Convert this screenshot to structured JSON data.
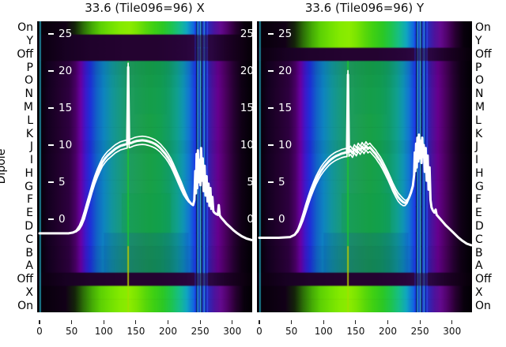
{
  "figure": {
    "background": "#ffffff",
    "text_color": "#000000"
  },
  "chart_data": {
    "type": "heatmap",
    "description": "Two spectral waterfall panels (per-dipole test states) with overlaid white power traces",
    "ylabel": "Dipole",
    "x_ticks": [
      0,
      50,
      100,
      150,
      200,
      250,
      300
    ],
    "x_range": [
      0,
      330
    ],
    "inner_db_ticks": [
      "25",
      "20",
      "15",
      "10",
      "5",
      "0"
    ],
    "db_tick_values": [
      25,
      20,
      15,
      10,
      5,
      0
    ],
    "row_labels": [
      "On",
      "Y",
      "Off",
      "P",
      "O",
      "N",
      "M",
      "L",
      "K",
      "J",
      "I",
      "H",
      "G",
      "F",
      "E",
      "D",
      "C",
      "B",
      "A",
      "Off",
      "X",
      "On"
    ],
    "row_shade": [
      0,
      0,
      0,
      0.05,
      0.02,
      0,
      0,
      0,
      0,
      0.03,
      0,
      0,
      0,
      0,
      0,
      0,
      0,
      0.04,
      0.06,
      0,
      0,
      0
    ],
    "braid_offsets": [
      0,
      0.55,
      -0.55
    ],
    "panels": [
      {
        "title": "33.6 (Tile096=96) X",
        "pol": "X",
        "row_styles": [
          "bright",
          "off",
          "off",
          "main",
          "main",
          "main",
          "main",
          "main",
          "main",
          "main",
          "main",
          "main",
          "main",
          "main",
          "main",
          "main",
          "main",
          "main",
          "main",
          "off",
          "bright",
          "bright"
        ],
        "trace": [
          [
            0,
            -1.9
          ],
          [
            25,
            -1.9
          ],
          [
            45,
            -1.9
          ],
          [
            52,
            -1.8
          ],
          [
            57,
            -1.6
          ],
          [
            62,
            -1.1
          ],
          [
            66,
            -0.4
          ],
          [
            70,
            0.6
          ],
          [
            74,
            1.8
          ],
          [
            78,
            3.0
          ],
          [
            82,
            4.2
          ],
          [
            86,
            5.3
          ],
          [
            90,
            6.2
          ],
          [
            94,
            7.0
          ],
          [
            98,
            7.7
          ],
          [
            102,
            8.2
          ],
          [
            106,
            8.6
          ],
          [
            110,
            8.9
          ],
          [
            114,
            9.2
          ],
          [
            118,
            9.5
          ],
          [
            122,
            9.7
          ],
          [
            126,
            9.9
          ],
          [
            130,
            10.0
          ],
          [
            134,
            10.1
          ],
          [
            136.5,
            10.15
          ],
          [
            138,
            20.5
          ],
          [
            139.5,
            10.2
          ],
          [
            143,
            10.3
          ],
          [
            147,
            10.45
          ],
          [
            151,
            10.55
          ],
          [
            155,
            10.6
          ],
          [
            160,
            10.65
          ],
          [
            165,
            10.6
          ],
          [
            170,
            10.5
          ],
          [
            175,
            10.35
          ],
          [
            180,
            10.15
          ],
          [
            184,
            9.9
          ],
          [
            188,
            9.6
          ],
          [
            192,
            9.2
          ],
          [
            196,
            8.8
          ],
          [
            200,
            8.3
          ],
          [
            204,
            7.7
          ],
          [
            208,
            7.0
          ],
          [
            212,
            6.2
          ],
          [
            216,
            5.4
          ],
          [
            220,
            4.6
          ],
          [
            224,
            3.8
          ],
          [
            228,
            3.1
          ],
          [
            232,
            2.5
          ],
          [
            236,
            2.1
          ],
          [
            239,
            1.9
          ],
          [
            241,
            2.6
          ],
          [
            242.5,
            6.5
          ],
          [
            243.5,
            3.5
          ],
          [
            244.5,
            8.8
          ],
          [
            245.5,
            4.2
          ],
          [
            246.5,
            9.3
          ],
          [
            248,
            5.0
          ],
          [
            249,
            8.0
          ],
          [
            250.5,
            4.6
          ],
          [
            251.5,
            9.6
          ],
          [
            253,
            5.2
          ],
          [
            254,
            8.2
          ],
          [
            255.5,
            3.8
          ],
          [
            257,
            7.2
          ],
          [
            258.5,
            3.2
          ],
          [
            260,
            5.8
          ],
          [
            261.5,
            2.4
          ],
          [
            263,
            4.8
          ],
          [
            264.5,
            1.8
          ],
          [
            266,
            4.2
          ],
          [
            267.5,
            1.4
          ],
          [
            269,
            3.0
          ],
          [
            270.5,
            1.1
          ],
          [
            272,
            0.9
          ],
          [
            275,
            0.7
          ],
          [
            277.5,
            0.6
          ],
          [
            279,
            1.9
          ],
          [
            280.5,
            0.5
          ],
          [
            283,
            0.2
          ],
          [
            287,
            -0.2
          ],
          [
            291,
            -0.6
          ],
          [
            296,
            -1.0
          ],
          [
            302,
            -1.5
          ],
          [
            308,
            -1.9
          ],
          [
            315,
            -2.3
          ],
          [
            322,
            -2.6
          ],
          [
            330,
            -2.8
          ]
        ]
      },
      {
        "title": "33.6 (Tile096=96) Y",
        "pol": "Y",
        "row_styles": [
          "bright",
          "bright",
          "off",
          "main",
          "main",
          "main",
          "main",
          "main",
          "main",
          "main",
          "main",
          "main",
          "main",
          "main",
          "main",
          "main",
          "main",
          "main",
          "main",
          "off",
          "bright",
          "bright"
        ],
        "trace": [
          [
            0,
            -2.5
          ],
          [
            30,
            -2.5
          ],
          [
            48,
            -2.4
          ],
          [
            55,
            -2.1
          ],
          [
            60,
            -1.5
          ],
          [
            64,
            -0.7
          ],
          [
            68,
            0.3
          ],
          [
            72,
            1.4
          ],
          [
            76,
            2.5
          ],
          [
            80,
            3.5
          ],
          [
            84,
            4.4
          ],
          [
            88,
            5.2
          ],
          [
            92,
            5.9
          ],
          [
            96,
            6.5
          ],
          [
            100,
            7.0
          ],
          [
            104,
            7.4
          ],
          [
            108,
            7.8
          ],
          [
            112,
            8.1
          ],
          [
            116,
            8.35
          ],
          [
            120,
            8.55
          ],
          [
            124,
            8.7
          ],
          [
            128,
            8.85
          ],
          [
            132,
            8.95
          ],
          [
            135,
            9.0
          ],
          [
            136.5,
            9.0
          ],
          [
            138,
            19.5
          ],
          [
            139.5,
            9.05
          ],
          [
            142,
            9.3
          ],
          [
            145,
            8.9
          ],
          [
            148,
            9.5
          ],
          [
            151,
            9.1
          ],
          [
            154,
            9.7
          ],
          [
            157,
            9.3
          ],
          [
            160,
            9.8
          ],
          [
            163,
            9.4
          ],
          [
            166,
            9.9
          ],
          [
            169,
            9.5
          ],
          [
            172,
            9.7
          ],
          [
            175,
            9.4
          ],
          [
            178,
            9.1
          ],
          [
            181,
            8.8
          ],
          [
            184,
            8.4
          ],
          [
            188,
            7.9
          ],
          [
            192,
            7.3
          ],
          [
            196,
            6.6
          ],
          [
            200,
            5.9
          ],
          [
            204,
            5.1
          ],
          [
            208,
            4.3
          ],
          [
            212,
            3.6
          ],
          [
            216,
            3.0
          ],
          [
            220,
            2.6
          ],
          [
            224,
            2.3
          ],
          [
            227,
            2.2
          ],
          [
            230,
            2.4
          ],
          [
            233,
            2.9
          ],
          [
            236,
            3.6
          ],
          [
            239,
            4.5
          ],
          [
            241,
            6.0
          ],
          [
            242,
            9.0
          ],
          [
            243,
            6.5
          ],
          [
            244,
            10.2
          ],
          [
            245,
            7.0
          ],
          [
            246,
            11.0
          ],
          [
            247.5,
            7.8
          ],
          [
            248.5,
            11.4
          ],
          [
            250,
            8.2
          ],
          [
            251,
            10.6
          ],
          [
            252.5,
            7.6
          ],
          [
            253.5,
            11.0
          ],
          [
            255,
            8.4
          ],
          [
            256,
            10.0
          ],
          [
            257.5,
            6.4
          ],
          [
            259,
            9.6
          ],
          [
            260.5,
            5.2
          ],
          [
            262,
            8.6
          ],
          [
            263.5,
            4.0
          ],
          [
            265,
            7.0
          ],
          [
            266.5,
            2.6
          ],
          [
            268,
            1.6
          ],
          [
            270,
            1.2
          ],
          [
            272.5,
            0.9
          ],
          [
            274.5,
            1.3
          ],
          [
            276,
            0.6
          ],
          [
            280,
            0.2
          ],
          [
            285,
            -0.3
          ],
          [
            290,
            -0.8
          ],
          [
            296,
            -1.3
          ],
          [
            302,
            -1.8
          ],
          [
            309,
            -2.4
          ],
          [
            316,
            -2.9
          ],
          [
            323,
            -3.3
          ],
          [
            330,
            -3.5
          ]
        ]
      }
    ],
    "colormaps": {
      "main": [
        [
          0,
          "#050008"
        ],
        [
          14,
          "#140020"
        ],
        [
          30,
          "#22002e"
        ],
        [
          46,
          "#2e0040"
        ],
        [
          56,
          "#4a0066"
        ],
        [
          64,
          "#6a00a4"
        ],
        [
          71,
          "#4016c8"
        ],
        [
          79,
          "#1e30d8"
        ],
        [
          89,
          "#1262c8"
        ],
        [
          100,
          "#0e84c0"
        ],
        [
          112,
          "#12949e"
        ],
        [
          126,
          "#189a7e"
        ],
        [
          140,
          "#1e9c60"
        ],
        [
          158,
          "#1c9e50"
        ],
        [
          172,
          "#18a046"
        ],
        [
          188,
          "#14a050"
        ],
        [
          202,
          "#119c68"
        ],
        [
          214,
          "#10a08e"
        ],
        [
          224,
          "#0f94b6"
        ],
        [
          233,
          "#1276d2"
        ],
        [
          241,
          "#1a42e2"
        ],
        [
          251,
          "#1830c8"
        ],
        [
          261,
          "#2a22b2"
        ],
        [
          269,
          "#4c129c"
        ],
        [
          278,
          "#66008e"
        ],
        [
          290,
          "#4a005e"
        ],
        [
          302,
          "#280034"
        ],
        [
          314,
          "#100016"
        ],
        [
          330,
          "#030006"
        ]
      ],
      "bright": [
        [
          0,
          "#060009"
        ],
        [
          40,
          "#120018"
        ],
        [
          55,
          "#14240a"
        ],
        [
          68,
          "#2c6e08"
        ],
        [
          82,
          "#44aa06"
        ],
        [
          95,
          "#5cd004"
        ],
        [
          110,
          "#70e002"
        ],
        [
          125,
          "#84ea00"
        ],
        [
          140,
          "#8cec00"
        ],
        [
          152,
          "#78e402"
        ],
        [
          165,
          "#58d80a"
        ],
        [
          178,
          "#3ed014"
        ],
        [
          192,
          "#2cc824"
        ],
        [
          205,
          "#1ec44e"
        ],
        [
          217,
          "#16be86"
        ],
        [
          229,
          "#10a6c0"
        ],
        [
          240,
          "#1266e0"
        ],
        [
          252,
          "#1a38d2"
        ],
        [
          263,
          "#2c28b6"
        ],
        [
          272,
          "#4c149e"
        ],
        [
          282,
          "#640a90"
        ],
        [
          293,
          "#4e0266"
        ],
        [
          305,
          "#280032"
        ],
        [
          318,
          "#0a000e"
        ],
        [
          330,
          "#020004"
        ]
      ],
      "off": [
        [
          0,
          "#0a000e"
        ],
        [
          40,
          "#180122"
        ],
        [
          80,
          "#20022c"
        ],
        [
          130,
          "#240330"
        ],
        [
          180,
          "#240330"
        ],
        [
          225,
          "#28043a"
        ],
        [
          250,
          "#2e0846"
        ],
        [
          268,
          "#2a0640"
        ],
        [
          290,
          "#1e0128"
        ],
        [
          315,
          "#100014"
        ],
        [
          330,
          "#060008"
        ]
      ]
    },
    "stripes": [
      {
        "ch": 242.5,
        "color": "#2038f0",
        "alpha": 0.85
      },
      {
        "ch": 244.6,
        "color": "#000428",
        "alpha": 0.75
      },
      {
        "ch": 246.6,
        "color": "#34b4d8",
        "alpha": 0.9
      },
      {
        "ch": 248.6,
        "color": "#0f24c0",
        "alpha": 0.9
      },
      {
        "ch": 250.6,
        "color": "#46c6d2",
        "alpha": 0.95
      },
      {
        "ch": 252.6,
        "color": "#000620",
        "alpha": 0.75
      },
      {
        "ch": 254.8,
        "color": "#2446ea",
        "alpha": 0.85
      },
      {
        "ch": 256.8,
        "color": "#34acd2",
        "alpha": 0.85
      },
      {
        "ch": 258.8,
        "color": "#0714a0",
        "alpha": 0.9
      },
      {
        "ch": 261.0,
        "color": "#3152f0",
        "alpha": 0.8
      }
    ],
    "patches": [
      {
        "ch": [
          128,
          204
        ],
        "rows": [
          13,
          16
        ],
        "color": "rgba(14,158,74,0.30)"
      },
      {
        "ch": [
          148,
          198
        ],
        "rows": [
          3,
          7
        ],
        "color": "rgba(12,150,88,0.22)"
      },
      {
        "ch": [
          100,
          232
        ],
        "rows": [
          16,
          19
        ],
        "color": "rgba(12,44,180,0.16)"
      }
    ],
    "cal_line": {
      "channel": 138,
      "color": "rgba(30,200,50,0.9)",
      "lower_color": "rgba(190,210,0,0.9)",
      "band_color": "rgba(170,220,0,0.65)"
    },
    "edge_line": {
      "channel": 1,
      "color": "rgba(40,192,216,0.85)"
    }
  }
}
